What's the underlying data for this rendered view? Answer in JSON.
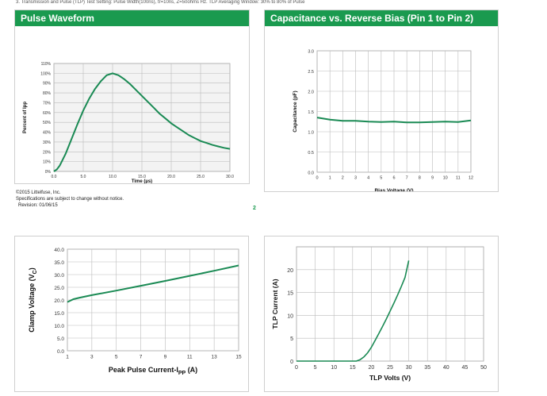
{
  "header_text": "3. Transmission and Pulse (TLP) Test Setting: Pulse Width(100ns), tr=10ns, Z=50ohms Hz. TLP Averaging Window: 30% to 80% of Pulse",
  "footer": {
    "copyright": "©2015 Littelfuse, Inc.",
    "notice": "Specifications are subject to change without notice.",
    "revision": "Revision: 01/06/15",
    "page_number": "2"
  },
  "colors": {
    "brand_green": "#1a9a4f",
    "series_green": "#1a8a54"
  },
  "chart_data": [
    {
      "type": "line",
      "title": "Pulse Waveform",
      "xlabel": "Time (µs)",
      "ylabel": "Percent of Ipp",
      "xlim": [
        0,
        30
      ],
      "ylim": [
        0,
        110
      ],
      "xticks": [
        0,
        5,
        10,
        15,
        20,
        25,
        30
      ],
      "xtick_labels": [
        "0.0",
        "5.0",
        "10.0",
        "15.0",
        "20.0",
        "25.0",
        "30.0"
      ],
      "yticks": [
        0,
        10,
        20,
        30,
        40,
        50,
        60,
        70,
        80,
        90,
        100,
        110
      ],
      "ytick_labels": [
        "0%",
        "10%",
        "20%",
        "30%",
        "40%",
        "50%",
        "60%",
        "70%",
        "80%",
        "90%",
        "100%",
        "110%"
      ],
      "grid": true,
      "x": [
        0,
        0.5,
        1,
        2,
        3,
        4,
        5,
        6,
        7,
        8,
        9,
        10,
        11,
        12,
        13,
        14,
        15,
        16,
        17,
        18,
        19,
        20,
        21,
        22,
        23,
        24,
        25,
        26,
        27,
        28,
        29,
        30
      ],
      "y": [
        0,
        2,
        6,
        18,
        33,
        48,
        62,
        74,
        84,
        92,
        98,
        100,
        98,
        94,
        89,
        83,
        77,
        71,
        65,
        59,
        54,
        49,
        45,
        41,
        37,
        34,
        31,
        29,
        27,
        25.5,
        24,
        23
      ]
    },
    {
      "type": "line",
      "title": "Capacitance vs. Reverse Bias (Pin 1 to Pin 2)",
      "xlabel": "Bias Voltage (V)",
      "ylabel": "Capacitance (pF)",
      "xlim": [
        0,
        12
      ],
      "ylim": [
        0,
        3
      ],
      "xticks": [
        0,
        1,
        2,
        3,
        4,
        5,
        6,
        7,
        8,
        9,
        10,
        11,
        12
      ],
      "xtick_labels": [
        "0",
        "1",
        "2",
        "3",
        "4",
        "5",
        "6",
        "7",
        "8",
        "9",
        "10",
        "11",
        "12"
      ],
      "yticks": [
        0,
        0.5,
        1,
        1.5,
        2,
        2.5,
        3
      ],
      "ytick_labels": [
        "0.0",
        "0.5",
        "1.0",
        "1.5",
        "2.0",
        "2.5",
        "3.0"
      ],
      "grid": true,
      "x": [
        0,
        1,
        2,
        3,
        4,
        5,
        6,
        7,
        8,
        9,
        10,
        11,
        12
      ],
      "y": [
        1.35,
        1.3,
        1.27,
        1.27,
        1.25,
        1.24,
        1.25,
        1.23,
        1.23,
        1.24,
        1.25,
        1.24,
        1.28
      ]
    },
    {
      "type": "line",
      "title": "",
      "xlabel": "Peak Pulse Current-I",
      "xlabel_sub": "PP",
      "xlabel_unit": " (A)",
      "ylabel": "Clamp Voltage (V",
      "ylabel_sub": "C",
      "ylabel_end": ")",
      "xlim": [
        1,
        15
      ],
      "ylim": [
        0,
        40
      ],
      "xticks": [
        1,
        3,
        5,
        7,
        9,
        11,
        13,
        15
      ],
      "xtick_labels": [
        "1",
        "3",
        "5",
        "7",
        "9",
        "11",
        "13",
        "15"
      ],
      "yticks": [
        0,
        5,
        10,
        15,
        20,
        25,
        30,
        35,
        40
      ],
      "ytick_labels": [
        "0.0",
        "5.0",
        "10.0",
        "15.0",
        "20.0",
        "25.0",
        "30.0",
        "35.0",
        "40.0"
      ],
      "grid": true,
      "x": [
        1,
        1.5,
        2,
        3,
        5,
        7,
        9,
        11,
        13,
        15
      ],
      "y": [
        19.2,
        20.3,
        20.9,
        21.9,
        23.7,
        25.6,
        27.5,
        29.5,
        31.5,
        33.6
      ]
    },
    {
      "type": "line",
      "title": "",
      "xlabel": "TLP Volts (V)",
      "ylabel": "TLP Current (A)",
      "xlim": [
        0,
        50
      ],
      "ylim": [
        0,
        25
      ],
      "xticks": [
        0,
        5,
        10,
        15,
        20,
        25,
        30,
        35,
        40,
        45,
        50
      ],
      "xtick_labels": [
        "0",
        "5",
        "10",
        "15",
        "20",
        "25",
        "30",
        "35",
        "40",
        "45",
        "50"
      ],
      "yticks": [
        0,
        5,
        10,
        15,
        20
      ],
      "ytick_labels": [
        "0",
        "5",
        "10",
        "15",
        "20"
      ],
      "grid": true,
      "x": [
        0,
        10,
        16,
        17,
        18,
        19,
        20,
        21,
        22,
        23,
        24,
        25,
        26,
        27,
        28,
        29,
        30
      ],
      "y": [
        0,
        0,
        0,
        0.3,
        0.9,
        1.8,
        3.0,
        4.5,
        6.0,
        7.6,
        9.2,
        10.9,
        12.6,
        14.4,
        16.3,
        18.3,
        22.0
      ]
    }
  ]
}
